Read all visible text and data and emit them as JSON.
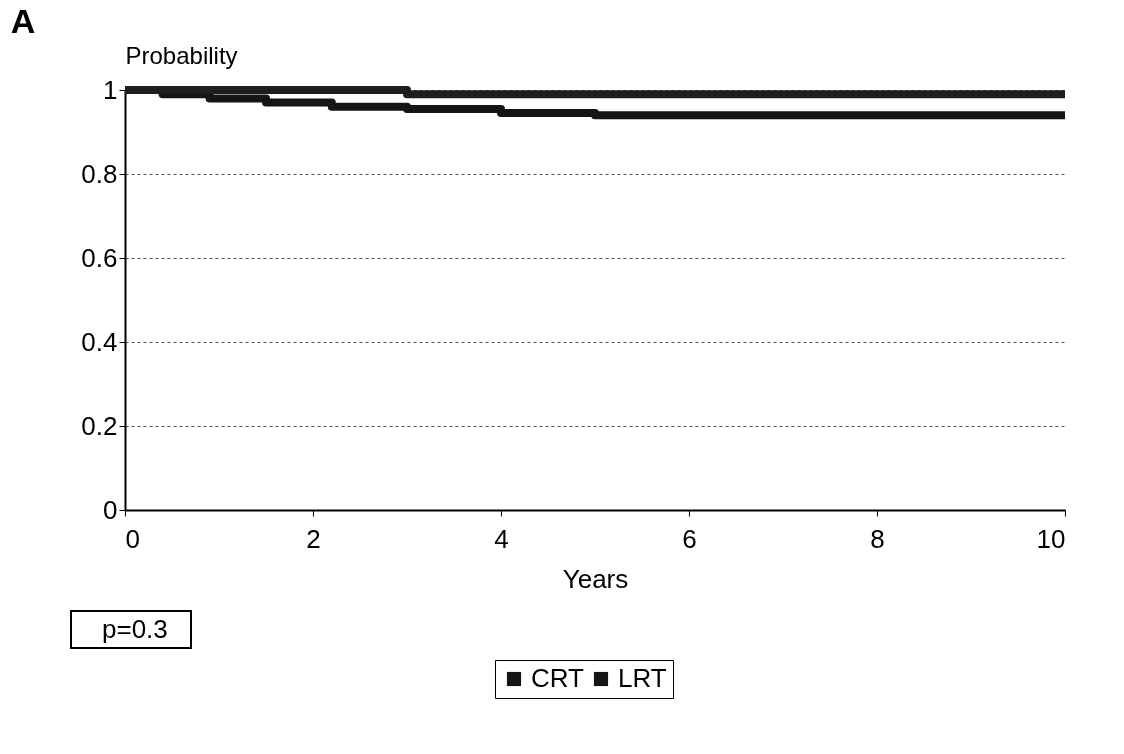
{
  "chart_data": {
    "type": "step",
    "title": "A",
    "xlabel": "Years",
    "ylabel": "Probability",
    "xlim": [
      0,
      10
    ],
    "xticks": [
      0,
      2,
      4,
      6,
      8,
      10
    ],
    "ylim": [
      0,
      1
    ],
    "yticks": [
      0,
      0.2,
      0.4,
      0.6,
      0.8,
      1
    ],
    "grid": "y",
    "legend": "bottom",
    "line_style": "solid",
    "annotations": [
      "p=0.3"
    ],
    "series": [
      {
        "name": "CRT",
        "color": "#151515",
        "x": [
          0,
          0.4,
          0.9,
          1.5,
          2.2,
          3,
          4,
          5,
          10
        ],
        "values": [
          1,
          0.99,
          0.98,
          0.97,
          0.96,
          0.955,
          0.945,
          0.94,
          0.94
        ]
      },
      {
        "name": "LRT",
        "color": "#1e1e1e",
        "x": [
          0,
          3,
          10
        ],
        "values": [
          1,
          0.99,
          0.99
        ]
      }
    ]
  }
}
